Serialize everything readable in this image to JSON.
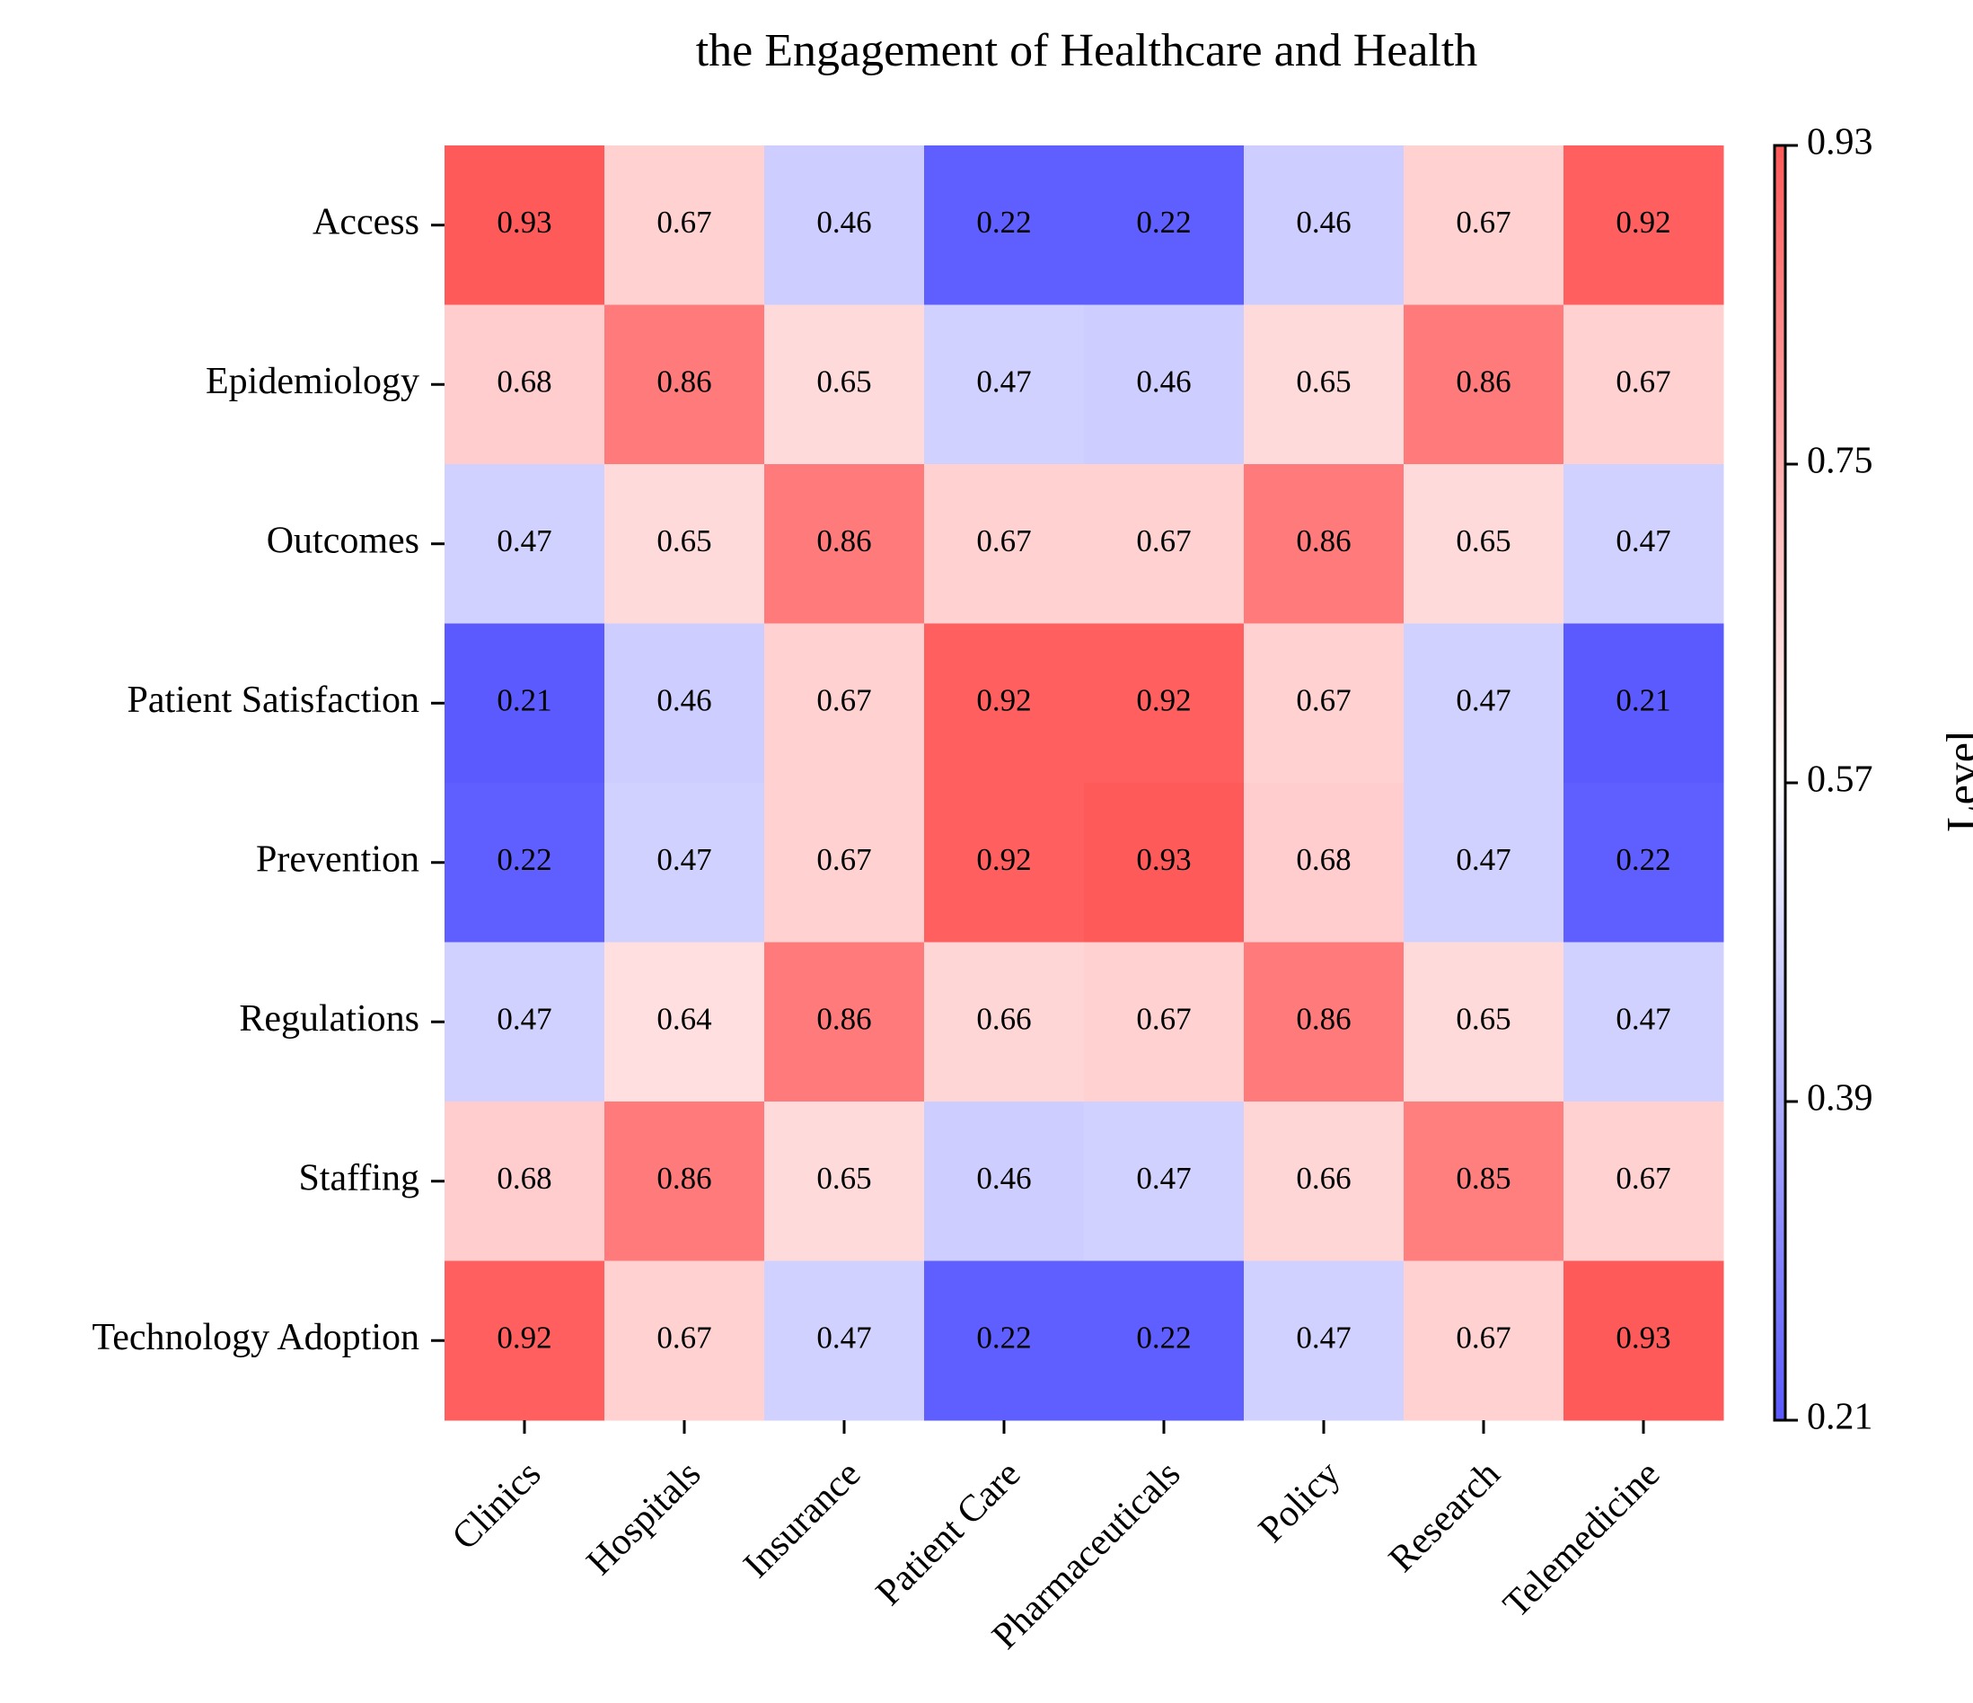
{
  "chart_data": {
    "type": "heatmap",
    "title": "the Engagement of Healthcare and Health",
    "x_categories": [
      "Clinics",
      "Hospitals",
      "Insurance",
      "Patient Care",
      "Pharmaceuticals",
      "Policy",
      "Research",
      "Telemedicine"
    ],
    "y_categories": [
      "Access",
      "Epidemiology",
      "Outcomes",
      "Patient Satisfaction",
      "Prevention",
      "Regulations",
      "Staffing",
      "Technology Adoption"
    ],
    "values": [
      [
        0.93,
        0.67,
        0.46,
        0.22,
        0.22,
        0.46,
        0.67,
        0.92
      ],
      [
        0.68,
        0.86,
        0.65,
        0.47,
        0.46,
        0.65,
        0.86,
        0.67
      ],
      [
        0.47,
        0.65,
        0.86,
        0.67,
        0.67,
        0.86,
        0.65,
        0.47
      ],
      [
        0.21,
        0.46,
        0.67,
        0.92,
        0.92,
        0.67,
        0.47,
        0.21
      ],
      [
        0.22,
        0.47,
        0.67,
        0.92,
        0.93,
        0.68,
        0.47,
        0.22
      ],
      [
        0.47,
        0.64,
        0.86,
        0.66,
        0.67,
        0.86,
        0.65,
        0.47
      ],
      [
        0.68,
        0.86,
        0.65,
        0.46,
        0.47,
        0.66,
        0.85,
        0.67
      ],
      [
        0.92,
        0.67,
        0.47,
        0.22,
        0.22,
        0.47,
        0.67,
        0.93
      ]
    ],
    "colorbar": {
      "label": "Level",
      "ticks": [
        "0.93",
        "0.75",
        "0.57",
        "0.39",
        "0.21"
      ],
      "range": [
        0.21,
        0.93
      ]
    },
    "colormap": [
      "#5a5aff",
      "#ffffff",
      "#ff5a5a"
    ],
    "grid": false
  }
}
